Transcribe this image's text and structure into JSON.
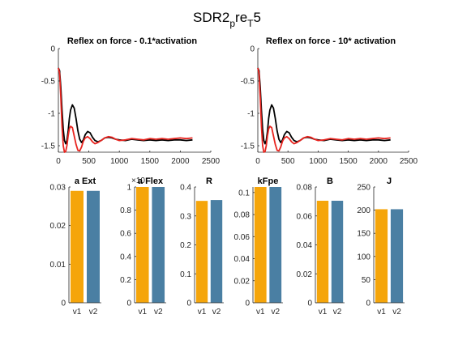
{
  "figure": {
    "title_base": "SDR2",
    "title_sub1": "p",
    "title_mid": "re",
    "title_sub2": "T",
    "title_end": "5"
  },
  "colors": {
    "black_line": "#000000",
    "red_line": "#e8241f",
    "bar_v1": "#f5a50a",
    "bar_v2": "#4a7fa3"
  },
  "chart_data": [
    {
      "type": "line",
      "title": "Reflex on force - 0.1*activation",
      "xlim": [
        0,
        2500
      ],
      "ylim": [
        -1.6,
        0
      ],
      "xticks": [
        0,
        500,
        1000,
        1500,
        2000,
        2500
      ],
      "yticks": [
        0,
        -0.5,
        -1,
        -1.5
      ],
      "series": [
        {
          "color": "#000000",
          "x": [
            0,
            20,
            40,
            60,
            80,
            100,
            120,
            140,
            160,
            180,
            200,
            230,
            260,
            290,
            320,
            350,
            380,
            410,
            440,
            480,
            520,
            560,
            600,
            650,
            700,
            760,
            820,
            880,
            940,
            1000,
            1100,
            1200,
            1300,
            1400,
            1500,
            1600,
            1700,
            1800,
            1900,
            2000,
            2100,
            2200
          ],
          "y": [
            -0.3,
            -0.34,
            -0.6,
            -0.95,
            -1.25,
            -1.42,
            -1.47,
            -1.42,
            -1.28,
            -1.08,
            -0.95,
            -0.87,
            -0.92,
            -1.08,
            -1.27,
            -1.4,
            -1.45,
            -1.41,
            -1.33,
            -1.28,
            -1.3,
            -1.37,
            -1.42,
            -1.44,
            -1.42,
            -1.38,
            -1.37,
            -1.38,
            -1.4,
            -1.41,
            -1.42,
            -1.4,
            -1.41,
            -1.42,
            -1.41,
            -1.42,
            -1.41,
            -1.42,
            -1.41,
            -1.41,
            -1.42,
            -1.41
          ]
        },
        {
          "color": "#e8241f",
          "x": [
            0,
            20,
            40,
            60,
            80,
            100,
            120,
            140,
            160,
            180,
            200,
            230,
            260,
            290,
            320,
            350,
            380,
            410,
            440,
            480,
            520,
            560,
            600,
            650,
            700,
            760,
            820,
            880,
            940,
            1000,
            1100,
            1200,
            1300,
            1400,
            1500,
            1600,
            1700,
            1800,
            1900,
            2000,
            2100,
            2200
          ],
          "y": [
            -0.3,
            -0.38,
            -0.75,
            -1.2,
            -1.5,
            -1.6,
            -1.59,
            -1.5,
            -1.35,
            -1.24,
            -1.2,
            -1.22,
            -1.35,
            -1.48,
            -1.57,
            -1.58,
            -1.52,
            -1.43,
            -1.38,
            -1.36,
            -1.39,
            -1.44,
            -1.47,
            -1.45,
            -1.42,
            -1.38,
            -1.36,
            -1.37,
            -1.4,
            -1.42,
            -1.41,
            -1.39,
            -1.4,
            -1.41,
            -1.39,
            -1.4,
            -1.39,
            -1.4,
            -1.39,
            -1.38,
            -1.39,
            -1.38
          ]
        }
      ]
    },
    {
      "type": "line",
      "title": "Reflex on force - 10* activation",
      "xlim": [
        0,
        2500
      ],
      "ylim": [
        -1.6,
        0
      ],
      "xticks": [
        0,
        500,
        1000,
        1500,
        2000,
        2500
      ],
      "yticks": [
        0,
        -0.5,
        -1,
        -1.5
      ],
      "series": [
        {
          "color": "#000000",
          "x": [
            0,
            20,
            40,
            60,
            80,
            100,
            120,
            140,
            160,
            180,
            200,
            230,
            260,
            290,
            320,
            350,
            380,
            410,
            440,
            480,
            520,
            560,
            600,
            650,
            700,
            760,
            820,
            880,
            940,
            1000,
            1100,
            1200,
            1300,
            1400,
            1500,
            1600,
            1700,
            1800,
            1900,
            2000,
            2100,
            2200
          ],
          "y": [
            -0.3,
            -0.34,
            -0.6,
            -0.95,
            -1.25,
            -1.42,
            -1.47,
            -1.42,
            -1.28,
            -1.08,
            -0.95,
            -0.87,
            -0.92,
            -1.08,
            -1.27,
            -1.4,
            -1.45,
            -1.41,
            -1.33,
            -1.28,
            -1.3,
            -1.37,
            -1.42,
            -1.44,
            -1.42,
            -1.38,
            -1.37,
            -1.38,
            -1.4,
            -1.41,
            -1.42,
            -1.4,
            -1.41,
            -1.42,
            -1.41,
            -1.42,
            -1.41,
            -1.42,
            -1.41,
            -1.41,
            -1.42,
            -1.41
          ]
        },
        {
          "color": "#e8241f",
          "x": [
            0,
            20,
            40,
            60,
            80,
            100,
            120,
            140,
            160,
            180,
            200,
            230,
            260,
            290,
            320,
            350,
            380,
            410,
            440,
            480,
            520,
            560,
            600,
            650,
            700,
            760,
            820,
            880,
            940,
            1000,
            1100,
            1200,
            1300,
            1400,
            1500,
            1600,
            1700,
            1800,
            1900,
            2000,
            2100,
            2200
          ],
          "y": [
            -0.3,
            -0.38,
            -0.75,
            -1.2,
            -1.5,
            -1.6,
            -1.59,
            -1.5,
            -1.35,
            -1.24,
            -1.2,
            -1.22,
            -1.35,
            -1.48,
            -1.57,
            -1.58,
            -1.52,
            -1.43,
            -1.38,
            -1.36,
            -1.39,
            -1.44,
            -1.47,
            -1.45,
            -1.42,
            -1.38,
            -1.36,
            -1.37,
            -1.4,
            -1.42,
            -1.41,
            -1.39,
            -1.4,
            -1.41,
            -1.39,
            -1.4,
            -1.39,
            -1.4,
            -1.39,
            -1.38,
            -1.39,
            -1.38
          ]
        }
      ]
    },
    {
      "type": "bar",
      "title": "a Ext",
      "categories": [
        "v1",
        "v2"
      ],
      "values": [
        0.029,
        0.029
      ],
      "ylim": [
        0,
        0.03
      ],
      "yticks": [
        0,
        0.01,
        0.02,
        0.03
      ],
      "ytick_labels": [
        "0",
        "0.01",
        "0.02",
        "0.03"
      ],
      "colors": [
        "#f5a50a",
        "#4a7fa3"
      ]
    },
    {
      "type": "bar",
      "title": "a Flex",
      "categories": [
        "v1",
        "v2"
      ],
      "values": [
        1.0,
        1.0
      ],
      "ylim": [
        0,
        1
      ],
      "yticks": [
        0,
        0.2,
        0.4,
        0.6,
        0.8,
        1
      ],
      "ytick_labels": [
        "0",
        "0.2",
        "0.4",
        "0.6",
        "0.8",
        "1"
      ],
      "exponent_label": "×10",
      "colors": [
        "#f5a50a",
        "#4a7fa3"
      ]
    },
    {
      "type": "bar",
      "title": "R",
      "categories": [
        "v1",
        "v2"
      ],
      "values": [
        0.352,
        0.355
      ],
      "ylim": [
        0,
        0.4
      ],
      "yticks": [
        0,
        0.1,
        0.2,
        0.3,
        0.4
      ],
      "ytick_labels": [
        "0",
        "0.1",
        "0.2",
        "0.3",
        "0.4"
      ],
      "colors": [
        "#f5a50a",
        "#4a7fa3"
      ]
    },
    {
      "type": "bar",
      "title": "kFpe",
      "categories": [
        "v1",
        "v2"
      ],
      "values": [
        0.105,
        0.105
      ],
      "ylim": [
        0,
        0.105
      ],
      "yticks": [
        0,
        0.02,
        0.04,
        0.06,
        0.08,
        0.1
      ],
      "ytick_labels": [
        "0",
        "0.02",
        "0.04",
        "0.06",
        "0.08",
        "0.1"
      ],
      "colors": [
        "#f5a50a",
        "#4a7fa3"
      ]
    },
    {
      "type": "bar",
      "title": "B",
      "categories": [
        "v1",
        "v2"
      ],
      "values": [
        0.0705,
        0.0705
      ],
      "ylim": [
        0,
        0.08
      ],
      "yticks": [
        0,
        0.02,
        0.04,
        0.06,
        0.08
      ],
      "ytick_labels": [
        "0",
        "0.02",
        "0.04",
        "0.06",
        "0.08"
      ],
      "colors": [
        "#f5a50a",
        "#4a7fa3"
      ]
    },
    {
      "type": "bar",
      "title": "J",
      "categories": [
        "v1",
        "v2"
      ],
      "values": [
        202,
        202
      ],
      "ylim": [
        0,
        250
      ],
      "yticks": [
        0,
        50,
        100,
        150,
        200,
        250
      ],
      "ytick_labels": [
        "0",
        "50",
        "100",
        "150",
        "200",
        "250"
      ],
      "colors": [
        "#f5a50a",
        "#4a7fa3"
      ]
    }
  ]
}
